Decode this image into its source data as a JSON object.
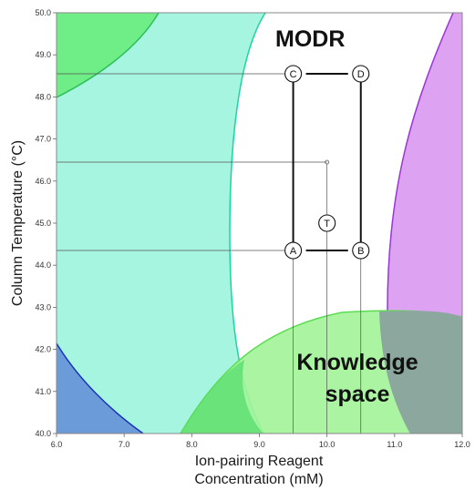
{
  "chart_data": {
    "type": "contour",
    "xlabel": [
      "Ion-pairing Reagent",
      "Concentration (mM)"
    ],
    "ylabel": "Column Temperature (°C)",
    "xlim": [
      6.0,
      12.0
    ],
    "ylim": [
      40.0,
      50.0
    ],
    "x_ticks": [
      "6.0",
      "7.0",
      "8.0",
      "9.0",
      "10.0",
      "11.0",
      "12.0"
    ],
    "y_ticks": [
      "40.0",
      "41.0",
      "42.0",
      "43.0",
      "44.0",
      "45.0",
      "46.0",
      "47.0",
      "48.0",
      "49.0",
      "50.0"
    ],
    "grid": false,
    "annotations": {
      "modr": "MODR",
      "knowledge_space_line1": "Knowledge",
      "knowledge_space_line2": "space"
    },
    "points": [
      {
        "label": "A",
        "x": 9.5,
        "y": 44.35
      },
      {
        "label": "B",
        "x": 10.5,
        "y": 44.35
      },
      {
        "label": "C",
        "x": 9.5,
        "y": 48.55
      },
      {
        "label": "D",
        "x": 10.5,
        "y": 48.55
      },
      {
        "label": "T",
        "x": 10.0,
        "y": 45.0
      }
    ],
    "center_point": {
      "x": 10.0,
      "y": 46.45
    },
    "colors": {
      "cyan_region": "#a6f5e1",
      "cyan_edge": "#18d79d",
      "green_region": "#6fee87",
      "green_edge": "#2cbf5a",
      "blue_region": "#6b9bd8",
      "blue_edge": "#1a33b8",
      "purple_region": "#dda2f2",
      "purple_edge": "#9a35d8",
      "lightgreen_region": "#a3f39a",
      "lightgreen_edge": "#5ddc53",
      "overlap_region": "#8ba79e"
    }
  }
}
